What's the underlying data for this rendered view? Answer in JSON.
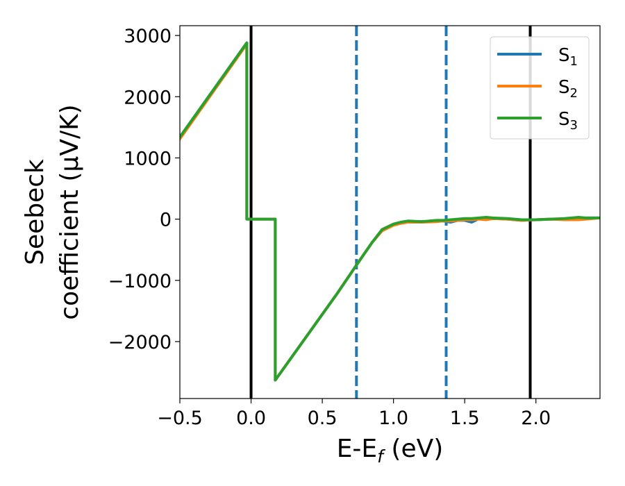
{
  "chart_data": {
    "type": "line",
    "xlabel": "E-E",
    "xlabel_sub": "f",
    "xlabel_unit": " (eV)",
    "ylabel_line1": "Seebeck",
    "ylabel_line2": "coefficient  (μV/K)",
    "xlim": [
      -0.5,
      2.45
    ],
    "ylim": [
      -2930,
      3160
    ],
    "x_ticks": [
      -0.5,
      0.0,
      0.5,
      1.0,
      1.5,
      2.0
    ],
    "x_tick_labels": [
      "−0.5",
      "0.0",
      "0.5",
      "1.0",
      "1.5",
      "2.0"
    ],
    "y_ticks": [
      -2000,
      -1000,
      0,
      1000,
      2000,
      3000
    ],
    "y_tick_labels": [
      "−2000",
      "−1000",
      "0",
      "1000",
      "2000",
      "3000"
    ],
    "grid": false,
    "legend_position": "top-right",
    "vertical_lines": [
      {
        "x": 0.0,
        "style": "solid",
        "color": "#000000"
      },
      {
        "x": 0.74,
        "style": "dashed",
        "color": "#1f77b4"
      },
      {
        "x": 1.37,
        "style": "dashed",
        "color": "#1f77b4"
      },
      {
        "x": 1.96,
        "style": "solid",
        "color": "#000000"
      }
    ],
    "series": [
      {
        "name": "S",
        "sub": "1",
        "color": "#1f77b4",
        "x": [
          -0.5,
          -0.03,
          -0.03,
          0.17,
          0.17,
          0.6,
          0.74,
          0.85,
          0.92,
          1.0,
          1.05,
          1.1,
          1.2,
          1.3,
          1.35,
          1.4,
          1.45,
          1.5,
          1.55,
          1.6,
          1.65,
          1.7,
          1.8,
          1.9,
          2.0,
          2.1,
          2.2,
          2.3,
          2.35,
          2.45
        ],
        "y": [
          1340,
          2880,
          0,
          0,
          -2630,
          -1230,
          -750,
          -380,
          -180,
          -90,
          -60,
          -40,
          -40,
          -30,
          -30,
          -50,
          -20,
          -20,
          -50,
          10,
          0,
          10,
          0,
          -20,
          -10,
          0,
          0,
          10,
          20,
          20
        ]
      },
      {
        "name": "S",
        "sub": "2",
        "color": "#ff7f0e",
        "x": [
          -0.5,
          -0.03,
          -0.03,
          0.17,
          0.17,
          0.6,
          0.74,
          0.85,
          0.92,
          1.0,
          1.05,
          1.1,
          1.2,
          1.3,
          1.35,
          1.4,
          1.45,
          1.5,
          1.55,
          1.6,
          1.65,
          1.7,
          1.8,
          1.9,
          2.0,
          2.1,
          2.2,
          2.3,
          2.35,
          2.45
        ],
        "y": [
          1310,
          2860,
          0,
          0,
          -2630,
          -1230,
          -750,
          -380,
          -190,
          -100,
          -70,
          -50,
          -50,
          -40,
          -30,
          -30,
          -20,
          -10,
          -10,
          0,
          -10,
          10,
          0,
          -20,
          -10,
          0,
          -10,
          -10,
          0,
          20
        ]
      },
      {
        "name": "S",
        "sub": "3",
        "color": "#2ca02c",
        "x": [
          -0.5,
          -0.03,
          -0.03,
          0.17,
          0.17,
          0.6,
          0.74,
          0.85,
          0.92,
          1.0,
          1.05,
          1.1,
          1.2,
          1.3,
          1.35,
          1.4,
          1.45,
          1.5,
          1.55,
          1.6,
          1.65,
          1.7,
          1.8,
          1.9,
          2.0,
          2.1,
          2.2,
          2.3,
          2.35,
          2.45
        ],
        "y": [
          1340,
          2880,
          0,
          0,
          -2630,
          -1230,
          -750,
          -380,
          -170,
          -80,
          -50,
          -30,
          -40,
          -20,
          -20,
          -10,
          0,
          10,
          10,
          20,
          30,
          20,
          10,
          -10,
          -10,
          0,
          10,
          30,
          20,
          20
        ]
      }
    ]
  }
}
